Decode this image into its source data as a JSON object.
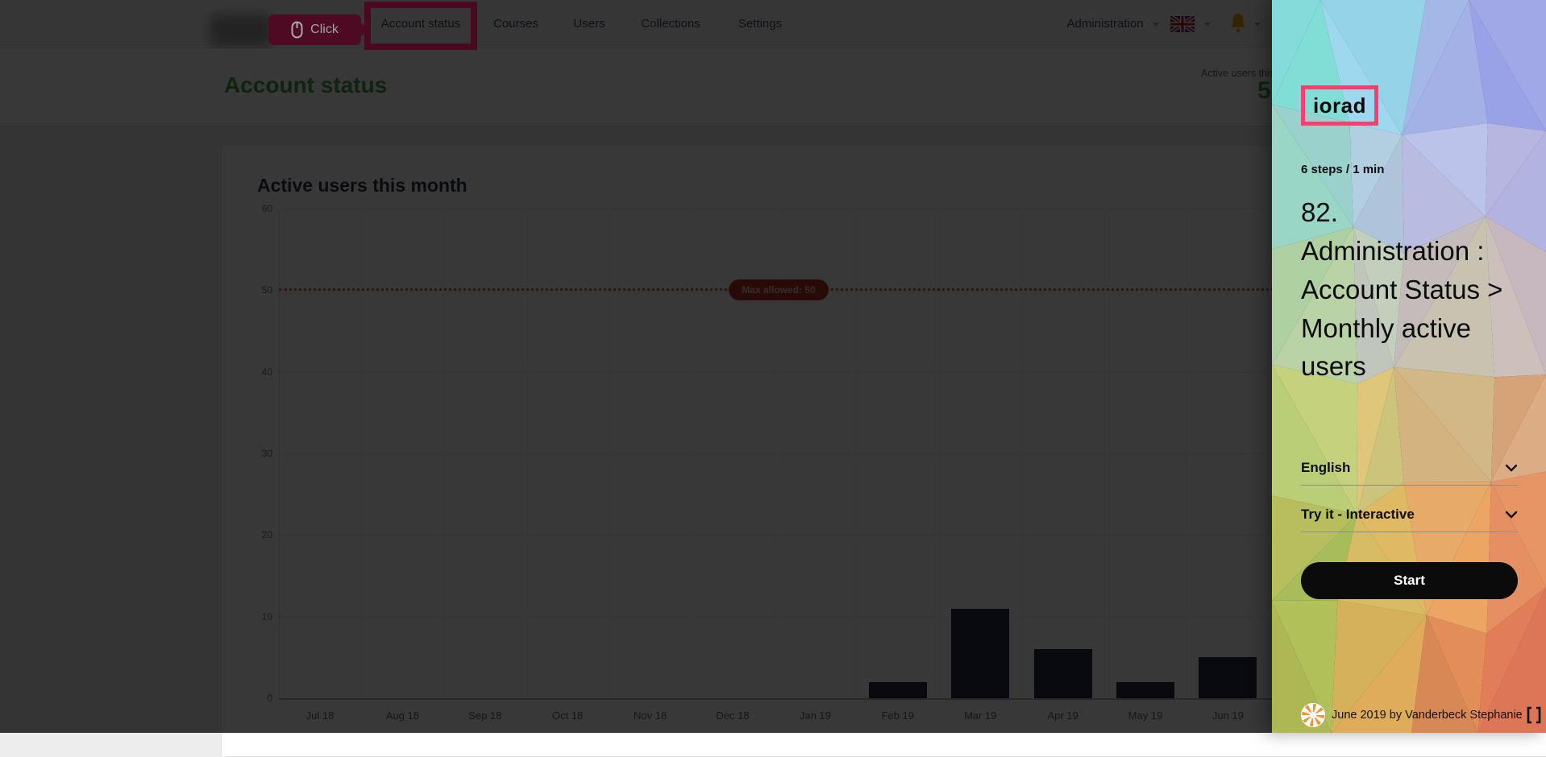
{
  "app": {
    "nav": {
      "items": [
        "Account status",
        "Courses",
        "Users",
        "Collections",
        "Settings"
      ],
      "admin_label": "Administration",
      "click_tooltip": "Click"
    },
    "header": {
      "title": "Account status",
      "stat_label": "Active users this month",
      "stat_value": "5"
    }
  },
  "chart_data": {
    "type": "bar",
    "title": "Active users this month",
    "categories": [
      "Jul 18",
      "Aug 18",
      "Sep 18",
      "Oct 18",
      "Nov 18",
      "Dec 18",
      "Jan 19",
      "Feb 19",
      "Mar 19",
      "Apr 19",
      "May 19",
      "Jun 19"
    ],
    "values": [
      0,
      0,
      0,
      0,
      0,
      0,
      0,
      2,
      11,
      6,
      2,
      5
    ],
    "xlabel": "",
    "ylabel": "",
    "ylim": [
      0,
      60
    ],
    "ytick_step": 10,
    "grid": true,
    "legend_position": "none",
    "max_line": {
      "value": 50,
      "label": "Max allowed: 50"
    },
    "bar_color": "#293046",
    "line_color": "#e8534a"
  },
  "panel": {
    "logo": "iorad",
    "steps": "6 steps / 1 min",
    "title": "82. Administration : Account Status > Monthly active users",
    "language": "English",
    "mode": "Try it - Interactive",
    "start_label": "Start",
    "credits": "June 2019 by Vanderbeck Stephanie",
    "accent_pink": "#fb3d6f"
  },
  "icons": {
    "mouse": "mouse-icon",
    "uk_flag": "uk-flag-icon",
    "bell": "bell-icon",
    "chevron": "chevron-down-icon",
    "fullscreen": "fullscreen-icon",
    "avatar": "author-avatar"
  },
  "colors": {
    "crimson_highlight": "#4d0a22",
    "green_accent": "#47a44b",
    "bell_orange": "#f0a30a",
    "badge_red": "#b73229"
  }
}
